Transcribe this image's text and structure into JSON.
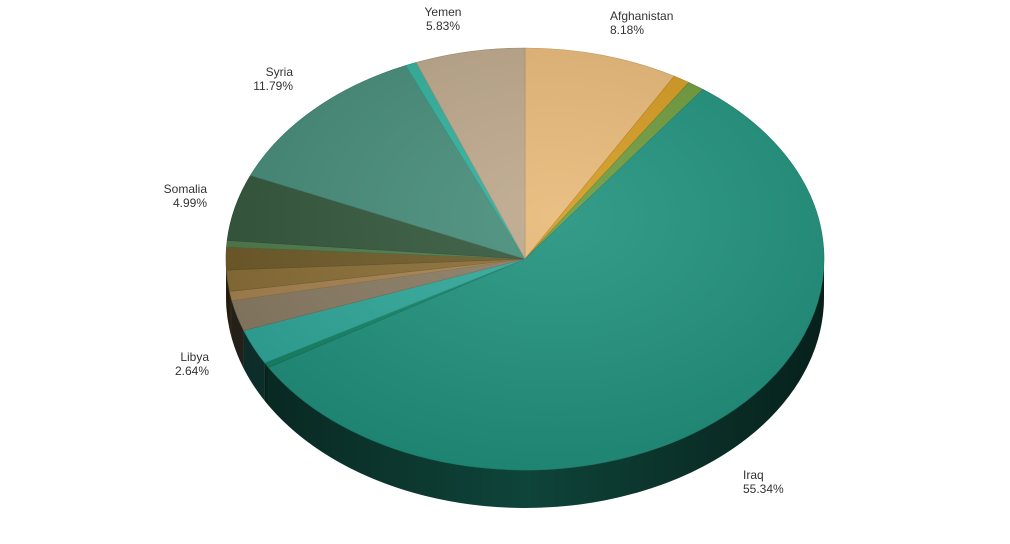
{
  "chart_data": {
    "type": "pie",
    "title": "",
    "labels_style": "name-and-percent",
    "slices": [
      {
        "name": "Afghanistan",
        "value": 8.18,
        "label": "8.18%",
        "color": "#E8B877",
        "show_label": true
      },
      {
        "name": "",
        "value": 0.9,
        "label": "",
        "color": "#D49A1E",
        "show_label": false
      },
      {
        "name": "",
        "value": 0.9,
        "label": "",
        "color": "#6E9A3A",
        "show_label": false
      },
      {
        "name": "Iraq",
        "value": 55.34,
        "label": "55.34%",
        "color": "#1E917C",
        "show_label": true
      },
      {
        "name": "",
        "value": 0.4,
        "label": "",
        "color": "#128566",
        "show_label": false
      },
      {
        "name": "Libya",
        "value": 2.64,
        "label": "2.64%",
        "color": "#2EA89A",
        "show_label": true
      },
      {
        "name": "",
        "value": 2.3,
        "label": "",
        "color": "#8A7B62",
        "show_label": false
      },
      {
        "name": "",
        "value": 0.7,
        "label": "",
        "color": "#A6824E",
        "show_label": false
      },
      {
        "name": "",
        "value": 1.6,
        "label": "",
        "color": "#8A6D34",
        "show_label": false
      },
      {
        "name": "",
        "value": 1.7,
        "label": "",
        "color": "#6E5A27",
        "show_label": false
      },
      {
        "name": "",
        "value": 0.5,
        "label": "",
        "color": "#4E7A4A",
        "show_label": false
      },
      {
        "name": "Somalia",
        "value": 4.99,
        "label": "4.99%",
        "color": "#32573A",
        "show_label": true
      },
      {
        "name": "Syria",
        "value": 11.79,
        "label": "11.79%",
        "color": "#458C78",
        "show_label": true
      },
      {
        "name": "",
        "value": 0.6,
        "label": "",
        "color": "#2FB09C",
        "show_label": false
      },
      {
        "name": "Yemen",
        "value": 5.83,
        "label": "5.83%",
        "color": "#BCA78A",
        "show_label": true
      }
    ]
  }
}
